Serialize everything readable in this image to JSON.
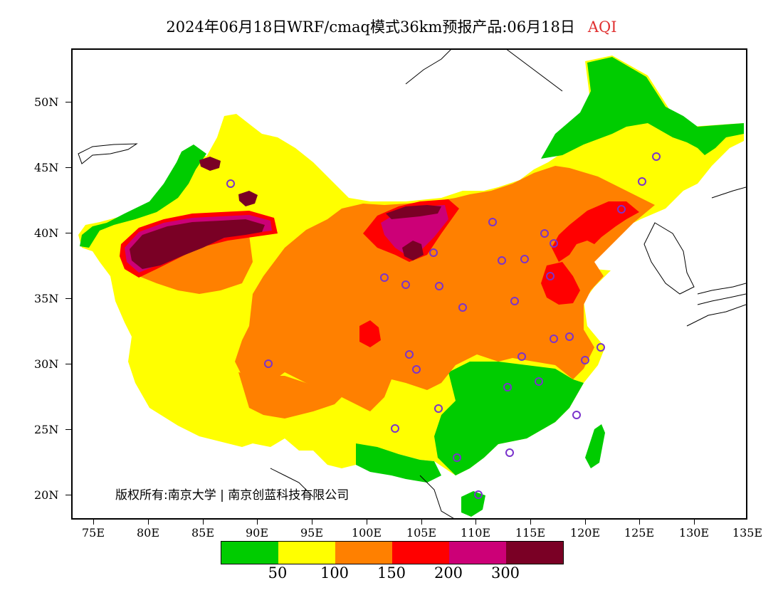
{
  "header": {
    "title": "2024年06月18日WRF/cmaq模式36km预报产品:06月18日",
    "variable": "AQI"
  },
  "axes": {
    "lat_labels": [
      "50N",
      "45N",
      "40N",
      "35N",
      "30N",
      "25N",
      "20N"
    ],
    "lon_labels": [
      "75E",
      "80E",
      "85E",
      "90E",
      "95E",
      "100E",
      "105E",
      "110E",
      "115E",
      "120E",
      "125E",
      "130E",
      "135E"
    ]
  },
  "copyright": "版权所有:南京大学 | 南京创蓝科技有限公司",
  "legend": {
    "colors": [
      "#00cc00",
      "#ffff00",
      "#ff8000",
      "#ff0000",
      "#cc0077",
      "#7a0025"
    ],
    "labels": [
      "50",
      "100",
      "150",
      "200",
      "300"
    ]
  },
  "map": {
    "land_color": "#ffff00",
    "region": "China",
    "station_marker_color": "#7a33cc"
  }
}
